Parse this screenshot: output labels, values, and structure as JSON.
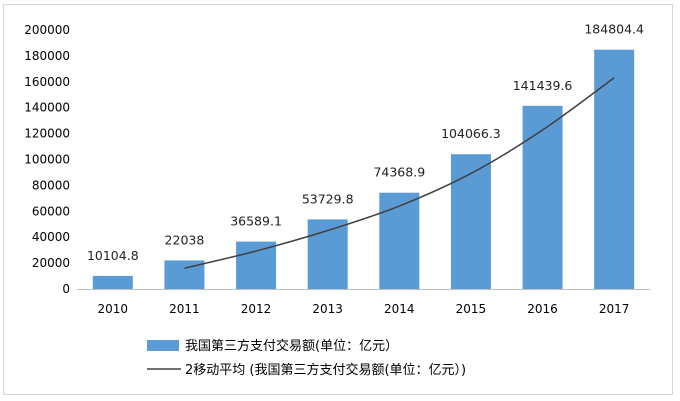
{
  "chart_data": {
    "type": "bar",
    "categories": [
      "2010",
      "2011",
      "2012",
      "2013",
      "2014",
      "2015",
      "2016",
      "2017"
    ],
    "series": [
      {
        "name": "我国第三方支付交易额(单位：亿元）",
        "values": [
          10104.8,
          22038,
          36589.1,
          53729.8,
          74368.9,
          104066.3,
          141439.6,
          184804.4
        ],
        "labels": [
          "10104.8",
          "22038",
          "36589.1",
          "53729.8",
          "74368.9",
          "104066.3",
          "141439.6",
          "184804.4"
        ],
        "color": "#5B9BD5"
      }
    ],
    "trendline": {
      "type": "moving_average",
      "period": 2,
      "name": "2移动平均 (我国第三方支付交易额(单位：亿元）)",
      "color": "#404040"
    },
    "yticks": [
      "0",
      "20000",
      "40000",
      "60000",
      "80000",
      "100000",
      "120000",
      "140000",
      "160000",
      "180000",
      "200000"
    ],
    "ylim": [
      0,
      200000
    ],
    "grid": false,
    "legend_position": "bottom"
  }
}
